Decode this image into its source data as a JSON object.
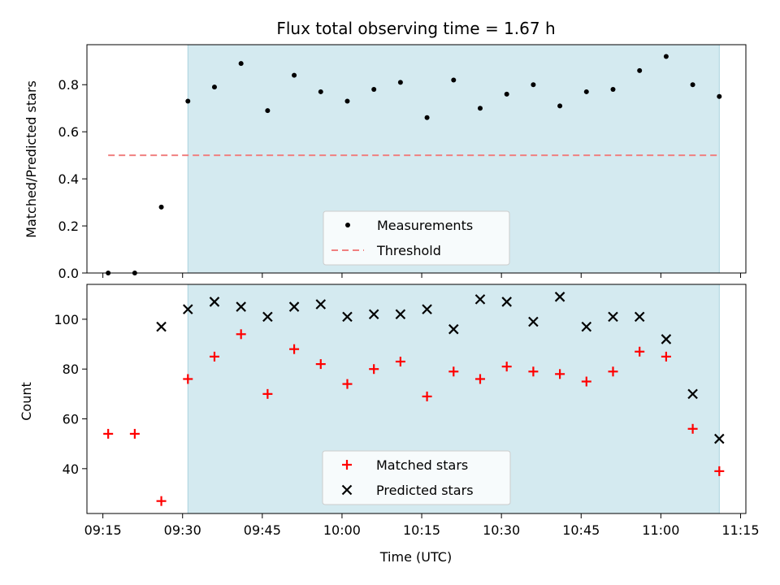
{
  "chart_data": {
    "type": "scatter",
    "title": "Flux total observing time = 1.67 h",
    "xlabel": "Time (UTC)",
    "x_ticks": [
      "09:15",
      "09:30",
      "09:45",
      "10:00",
      "10:15",
      "10:30",
      "10:45",
      "11:00",
      "11:15"
    ],
    "x_range": [
      "09:12",
      "11:16"
    ],
    "shaded_interval": [
      "09:31",
      "11:11"
    ],
    "colors": {
      "shade": "#d4eaf0",
      "threshold": "#f08080",
      "matched": "#ff0000",
      "predicted": "#000000",
      "measurement": "#000000"
    },
    "times": [
      "09:16",
      "09:21",
      "09:26",
      "09:31",
      "09:36",
      "09:41",
      "09:46",
      "09:51",
      "09:56",
      "10:01",
      "10:06",
      "10:11",
      "10:16",
      "10:21",
      "10:26",
      "10:31",
      "10:36",
      "10:41",
      "10:46",
      "10:51",
      "10:56",
      "11:01",
      "11:06",
      "11:11"
    ],
    "top": {
      "ylabel": "Matched/Predicted stars",
      "ylim": [
        0,
        0.97
      ],
      "y_ticks": [
        "0.0",
        "0.2",
        "0.4",
        "0.6",
        "0.8"
      ],
      "legend_position": "lower-center",
      "series": [
        {
          "name": "Measurements",
          "values": [
            0.0,
            0.0,
            0.28,
            0.73,
            0.79,
            0.89,
            0.69,
            0.84,
            0.77,
            0.73,
            0.78,
            0.81,
            0.66,
            0.82,
            0.7,
            0.76,
            0.8,
            0.71,
            0.77,
            0.78,
            0.86,
            0.92,
            0.8,
            0.75
          ]
        },
        {
          "name": "Threshold",
          "value": 0.5,
          "x_from": "09:16",
          "x_to": "11:11"
        }
      ]
    },
    "bottom": {
      "ylabel": "Count",
      "ylim": [
        22,
        114
      ],
      "y_ticks": [
        "40",
        "60",
        "80",
        "100"
      ],
      "legend_position": "lower-center",
      "series": [
        {
          "name": "Matched stars",
          "values": [
            54,
            54,
            27,
            76,
            85,
            94,
            70,
            88,
            82,
            74,
            80,
            83,
            69,
            79,
            76,
            81,
            79,
            78,
            75,
            79,
            87,
            85,
            56,
            39
          ]
        },
        {
          "name": "Predicted stars",
          "values": [
            null,
            null,
            97,
            104,
            107,
            105,
            101,
            105,
            106,
            101,
            102,
            102,
            104,
            96,
            108,
            107,
            99,
            109,
            97,
            101,
            101,
            92,
            70,
            52
          ]
        }
      ]
    }
  }
}
